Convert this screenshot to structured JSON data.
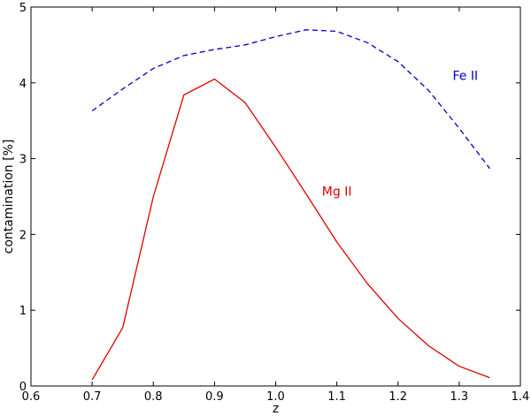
{
  "chart_data": {
    "type": "line",
    "xlabel": "z",
    "ylabel": "contamination [%]",
    "xlim": [
      0.6,
      1.4
    ],
    "ylim": [
      0,
      5
    ],
    "x_ticks": [
      "0.6",
      "0.7",
      "0.8",
      "0.9",
      "1.0",
      "1.1",
      "1.2",
      "1.3",
      "1.4"
    ],
    "y_ticks": [
      "0",
      "1",
      "2",
      "3",
      "4",
      "5"
    ],
    "grid": false,
    "legend": "none",
    "series": [
      {
        "name": "Fe II",
        "color": "#0000cc",
        "style": "dashed",
        "label_at": [
          1.31,
          4.04
        ],
        "x": [
          0.7,
          0.75,
          0.8,
          0.85,
          0.9,
          0.95,
          1.0,
          1.05,
          1.1,
          1.15,
          1.2,
          1.25,
          1.3,
          1.35
        ],
        "y": [
          3.63,
          3.92,
          4.19,
          4.36,
          4.44,
          4.5,
          4.61,
          4.7,
          4.68,
          4.53,
          4.28,
          3.9,
          3.4,
          2.87
        ]
      },
      {
        "name": "Mg II",
        "color": "#dd0000",
        "style": "solid",
        "label_at": [
          1.1,
          2.51
        ],
        "x": [
          0.7,
          0.75,
          0.8,
          0.85,
          0.9,
          0.95,
          1.0,
          1.05,
          1.1,
          1.15,
          1.2,
          1.25,
          1.3,
          1.35
        ],
        "y": [
          0.08,
          0.77,
          2.5,
          3.84,
          4.05,
          3.74,
          3.15,
          2.53,
          1.9,
          1.35,
          0.89,
          0.53,
          0.26,
          0.11
        ]
      }
    ]
  }
}
